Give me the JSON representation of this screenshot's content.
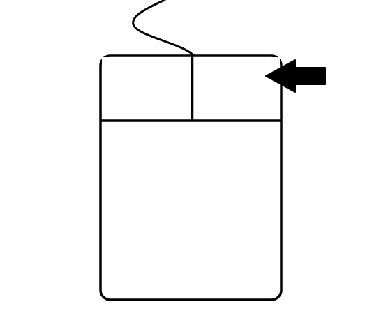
{
  "diagram": {
    "subject": "mouse-icon",
    "highlighted_part": "right-mouse-button",
    "pointer": "arrow-left-icon"
  },
  "colors": {
    "background": "#ffffff",
    "stroke": "#000000",
    "arrow_fill": "#000000",
    "button_fill": "#ffffff"
  }
}
